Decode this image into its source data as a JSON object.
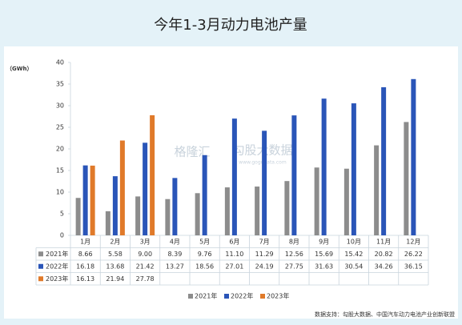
{
  "title": "今年1-3月动力电池产量",
  "watermark": {
    "brand": "格隆汇",
    "partner": "勾股大数据",
    "site": "www.gogudata.com"
  },
  "chart_data": {
    "type": "bar",
    "y_label": "（GWh）",
    "categories": [
      "1月",
      "2月",
      "3月",
      "4月",
      "5月",
      "6月",
      "7月",
      "8月",
      "9月",
      "10月",
      "11月",
      "12月"
    ],
    "series": [
      {
        "name": "2021年",
        "color": "#8c8c8c",
        "values": [
          8.66,
          5.58,
          9.0,
          8.39,
          9.76,
          11.1,
          11.29,
          12.56,
          15.69,
          15.42,
          20.82,
          26.22
        ],
        "value_labels": [
          "8.66",
          "5.58",
          "9.00",
          "8.39",
          "9.76",
          "11.10",
          "11.29",
          "12.56",
          "15.69",
          "15.42",
          "20.82",
          "26.22"
        ]
      },
      {
        "name": "2022年",
        "color": "#2a55b8",
        "values": [
          16.18,
          13.68,
          21.42,
          13.27,
          18.56,
          27.01,
          24.19,
          27.75,
          31.63,
          30.54,
          34.26,
          36.15
        ],
        "value_labels": [
          "16.18",
          "13.68",
          "21.42",
          "13.27",
          "18.56",
          "27.01",
          "24.19",
          "27.75",
          "31.63",
          "30.54",
          "34.26",
          "36.15"
        ]
      },
      {
        "name": "2023年",
        "color": "#e07a2a",
        "values": [
          16.13,
          21.94,
          27.78,
          null,
          null,
          null,
          null,
          null,
          null,
          null,
          null,
          null
        ],
        "value_labels": [
          "16.13",
          "21.94",
          "27.78",
          null,
          null,
          null,
          null,
          null,
          null,
          null,
          null,
          null
        ]
      }
    ],
    "ylim": [
      0,
      40
    ],
    "yticks": [
      0,
      5,
      10,
      15,
      20,
      25,
      30,
      35,
      40
    ],
    "legend": "bottom"
  },
  "source": "数据支持：勾股大数据、中国汽车动力电池产业创新联盟"
}
